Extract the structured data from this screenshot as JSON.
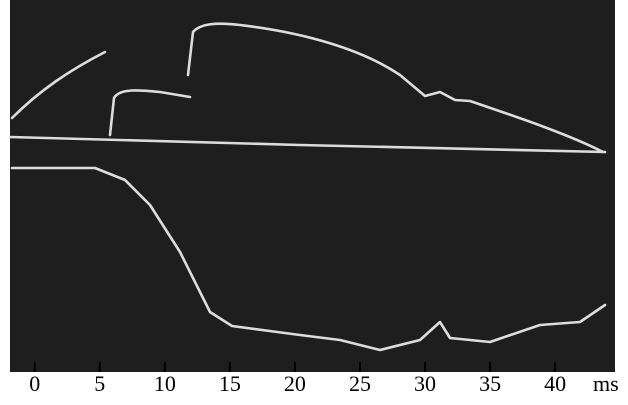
{
  "chart_data": {
    "type": "oscillogram",
    "x_unit": "ms",
    "xlim": [
      -1.9,
      44.6
    ],
    "xticks": [
      0,
      5,
      10,
      15,
      20,
      25,
      30,
      35,
      40
    ]
  }
}
